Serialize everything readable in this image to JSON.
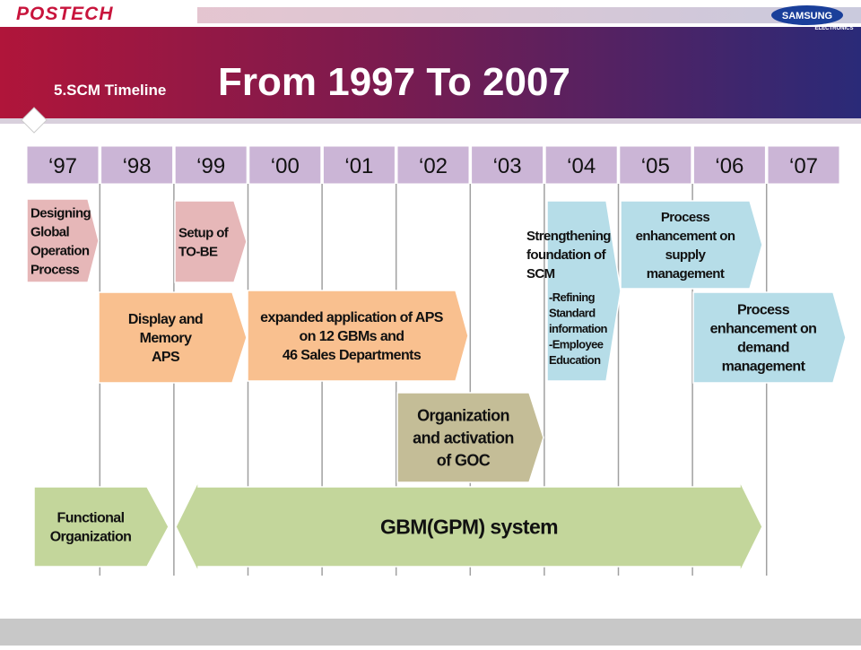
{
  "header": {
    "logo_left": "POSTECH",
    "logo_right": "SAMSUNG",
    "logo_right_sub": "ELECTRONICS"
  },
  "title": {
    "prefix": "5.SCM Timeline",
    "main": "From 1997 To 2007"
  },
  "years": [
    "‘97",
    "‘98",
    "‘99",
    "‘00",
    "‘01",
    "‘02",
    "‘03",
    "‘04",
    "‘05",
    "‘06",
    "‘07"
  ],
  "boxes": [
    {
      "lines": [
        "Designing",
        "Global",
        "Operation",
        "Process"
      ]
    },
    {
      "lines": [
        "Setup of",
        "TO-BE"
      ]
    },
    {
      "lines": [
        "Display and",
        "Memory",
        "APS"
      ]
    },
    {
      "lines": [
        "expanded application of APS",
        "on 12 GBMs and",
        "46 Sales Departments"
      ]
    },
    {
      "lines": [
        "Organization",
        "and activation",
        "of GOC"
      ]
    },
    {
      "lines": [
        "Strengthening",
        "foundation of",
        "SCM"
      ],
      "details": [
        "-Refining",
        "Standard",
        "information",
        "-Employee",
        "Education"
      ]
    },
    {
      "lines": [
        "Process",
        "enhancement on",
        "supply",
        "management"
      ]
    },
    {
      "lines": [
        "Process",
        "enhancement on",
        "demand",
        "management"
      ]
    },
    {
      "lines": [
        "Functional",
        "Organization"
      ]
    },
    {
      "lines": [
        "GBM(GPM) system"
      ]
    }
  ]
}
